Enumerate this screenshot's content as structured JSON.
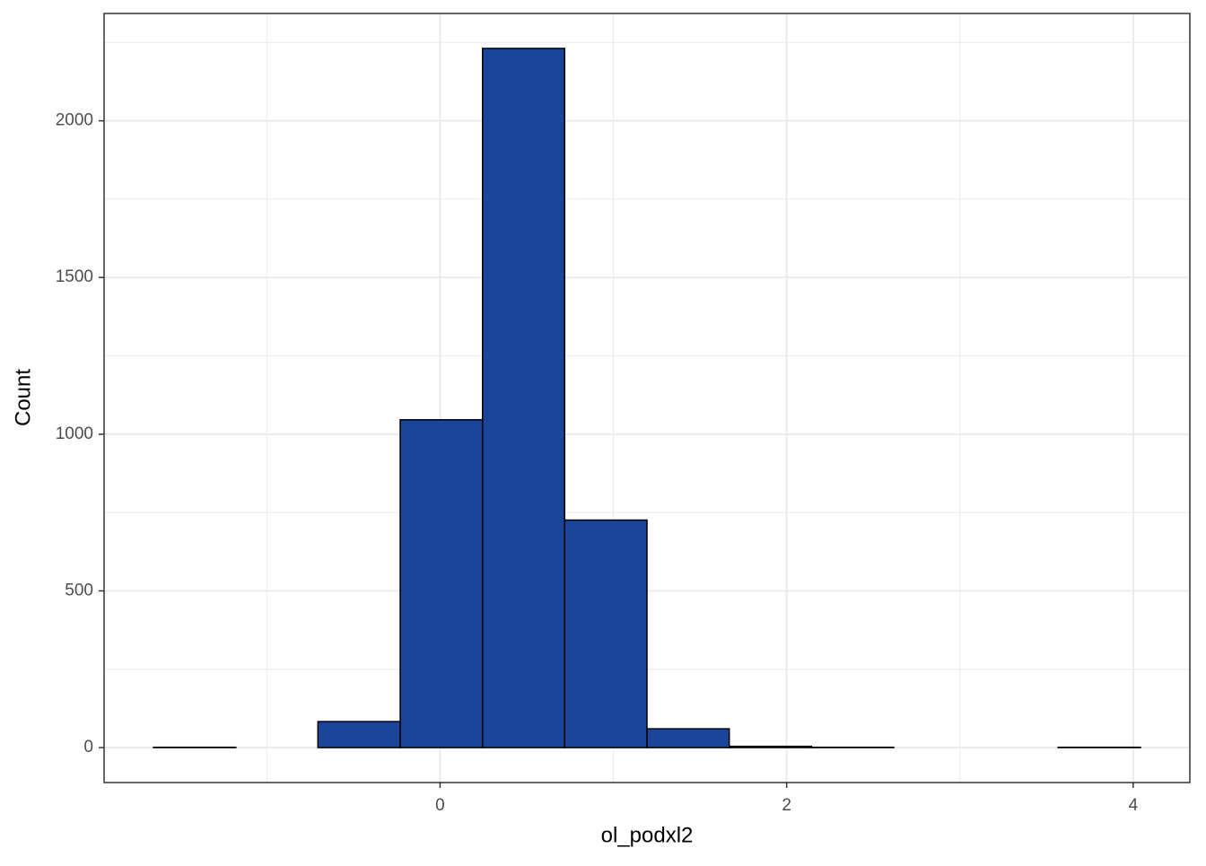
{
  "chart_data": {
    "type": "histogram",
    "x_label": "ol_podxl2",
    "y_label": "Count",
    "bins": [
      -1.654,
      -1.179,
      -0.705,
      -0.23,
      0.245,
      0.719,
      1.194,
      1.669,
      2.143,
      2.618,
      3.093,
      3.567,
      4.042
    ],
    "values": [
      1,
      0,
      83,
      1046,
      2231,
      726,
      60,
      4,
      1,
      0,
      0,
      1
    ],
    "color": "#1a4599",
    "edge_color": "#000000",
    "xlim": [
      -1.939,
      4.327
    ],
    "xticks": [
      0,
      2,
      4
    ],
    "x_minor_grid": [
      -1,
      1,
      3
    ],
    "ylim": [
      -111.5,
      2342.5
    ],
    "yticks": [
      0,
      500,
      1000,
      1500,
      2000
    ],
    "y_minor_grid": [
      250,
      750,
      1250,
      1750,
      2250
    ],
    "grid": true
  }
}
